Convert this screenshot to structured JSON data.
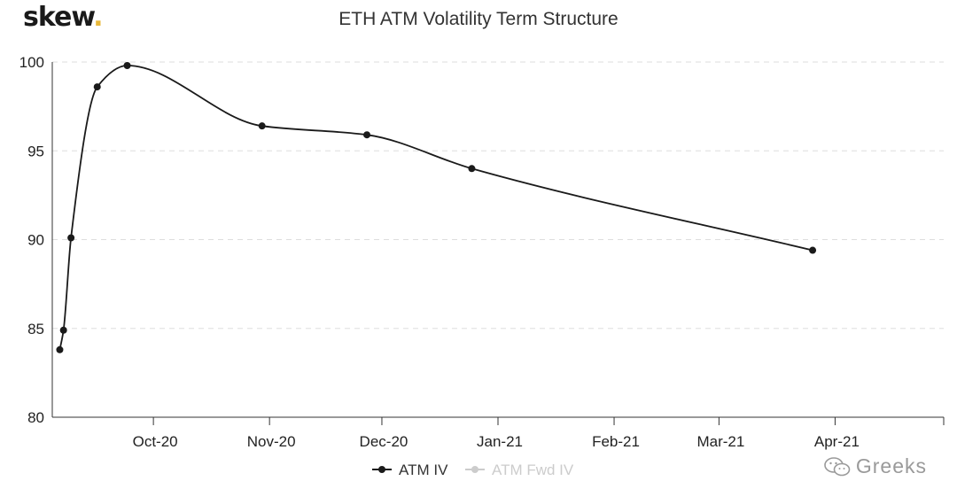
{
  "logo": {
    "text": "skew",
    "dot": ".",
    "accent_color": "#e8b83a"
  },
  "watermark": {
    "text": "Greeks",
    "icon": "wechat-icon"
  },
  "chart_data": {
    "type": "line",
    "title": "ETH ATM Volatility Term Structure",
    "xlabel": "",
    "ylabel": "",
    "x_axis": "date",
    "xlim": [
      "2020-09-04",
      "2021-04-30"
    ],
    "ylim": [
      80,
      100
    ],
    "yticks": [
      80,
      85,
      90,
      95,
      100
    ],
    "xticks": [
      {
        "date": "2020-10-01",
        "label": "Oct-20"
      },
      {
        "date": "2020-11-01",
        "label": "Nov-20"
      },
      {
        "date": "2020-12-01",
        "label": "Dec-20"
      },
      {
        "date": "2021-01-01",
        "label": "Jan-21"
      },
      {
        "date": "2021-02-01",
        "label": "Feb-21"
      },
      {
        "date": "2021-03-01",
        "label": "Mar-21"
      },
      {
        "date": "2021-04-01",
        "label": "Apr-21"
      }
    ],
    "grid": "horizontal-dashed",
    "legend_position": "bottom-center",
    "series": [
      {
        "name": "ATM IV",
        "color": "#1a1a1a",
        "visible": true,
        "points": [
          {
            "x": "2020-09-06",
            "y": 83.8
          },
          {
            "x": "2020-09-07",
            "y": 84.9
          },
          {
            "x": "2020-09-09",
            "y": 90.1
          },
          {
            "x": "2020-09-16",
            "y": 98.6
          },
          {
            "x": "2020-09-24",
            "y": 99.8
          },
          {
            "x": "2020-10-30",
            "y": 96.4
          },
          {
            "x": "2020-11-27",
            "y": 95.9
          },
          {
            "x": "2020-12-25",
            "y": 94.0
          },
          {
            "x": "2021-03-26",
            "y": 89.4
          }
        ]
      },
      {
        "name": "ATM Fwd IV",
        "color": "#cccccc",
        "visible": false,
        "points": []
      }
    ]
  }
}
